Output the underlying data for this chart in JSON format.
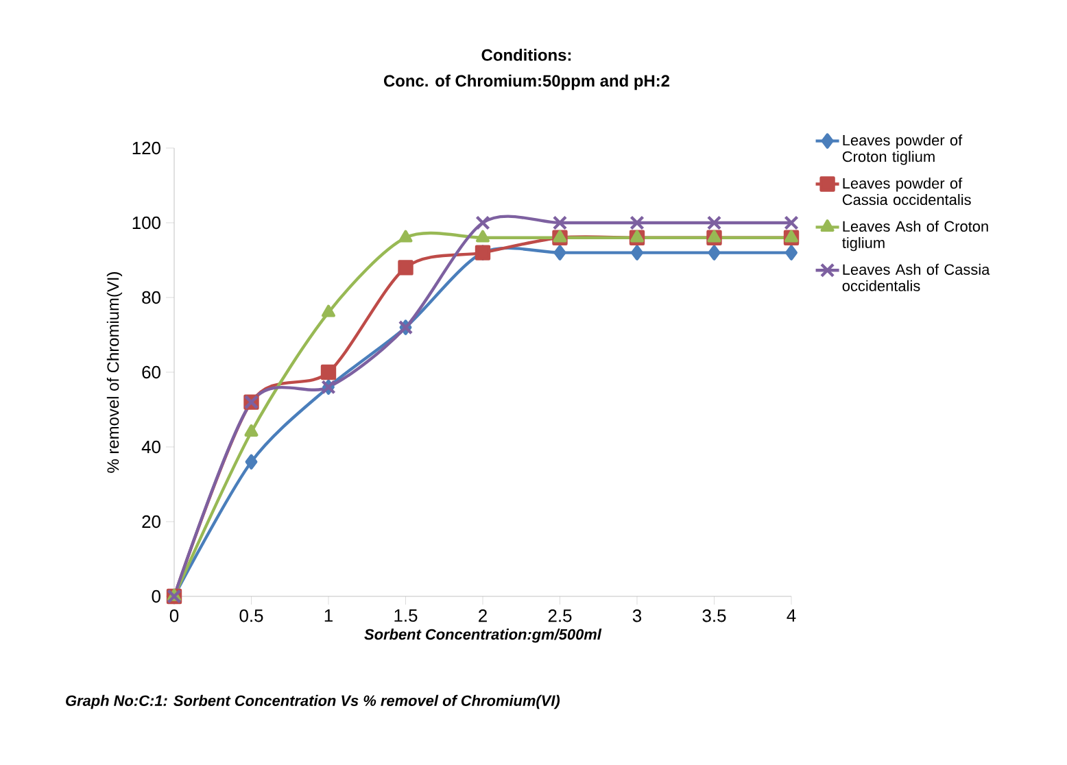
{
  "chart_data": {
    "type": "line",
    "title": "Conditions:",
    "subtitle": "Conc. of Chromium:50ppm and pH:2",
    "xlabel": "Sorbent Concentration:gm/500ml",
    "ylabel": "% removel of  Chromium(VI)",
    "annotations": [
      "Graph No:C:1: Sorbent Concentration Vs %  removel of  Chromium(VI)"
    ],
    "x": [
      0,
      0.5,
      1,
      1.5,
      2,
      2.5,
      3,
      3.5,
      4
    ],
    "series": [
      {
        "name": "Leaves powder of Croton tiglium",
        "color": "#4a7ebb",
        "marker": "diamond",
        "values": [
          0,
          36,
          56,
          72,
          92,
          92,
          92,
          92,
          92
        ]
      },
      {
        "name": "Leaves powder of Cassia occidentalis",
        "color": "#be4b48",
        "marker": "square",
        "values": [
          0,
          52,
          60,
          88,
          92,
          96,
          96,
          96,
          96
        ]
      },
      {
        "name": "Leaves Ash of Croton tiglium",
        "color": "#98b954",
        "marker": "triangle",
        "values": [
          0,
          44,
          76,
          96,
          96,
          96,
          96,
          96,
          96
        ]
      },
      {
        "name": "Leaves Ash  of Cassia occidentalis",
        "color": "#7d60a0",
        "marker": "cross",
        "values": [
          0,
          52,
          56,
          72,
          100,
          100,
          100,
          100,
          100
        ]
      }
    ],
    "xlim": [
      0,
      4
    ],
    "xticks": [
      0,
      0.5,
      1,
      1.5,
      2,
      2.5,
      3,
      3.5,
      4
    ],
    "ylim": [
      0,
      120
    ],
    "yticks": [
      0,
      20,
      40,
      60,
      80,
      100,
      120
    ],
    "legend": "right",
    "grid": false
  }
}
